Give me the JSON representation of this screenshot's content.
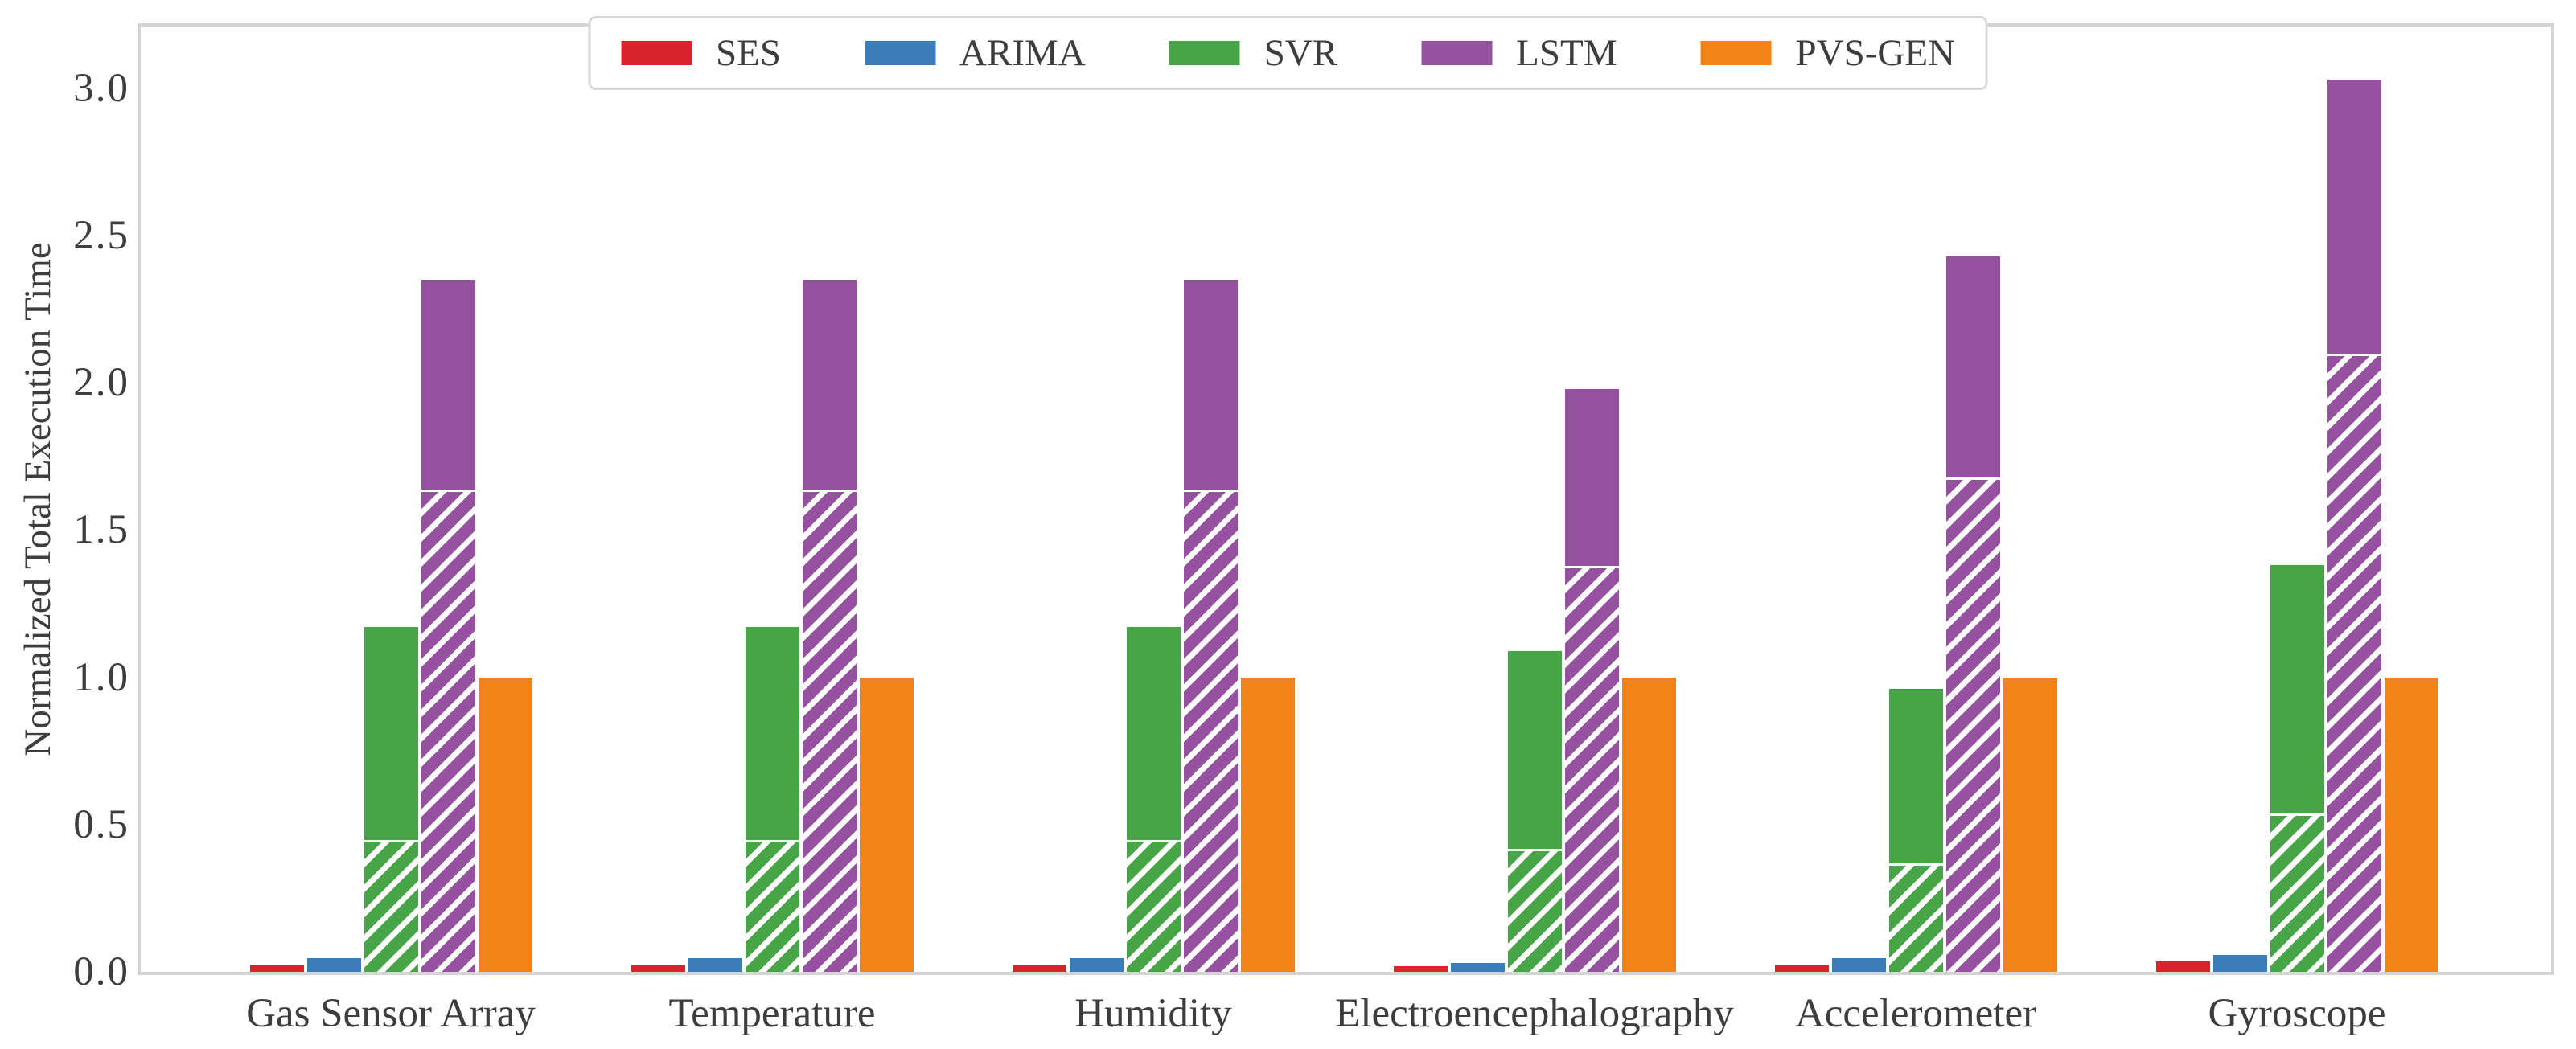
{
  "figure": {
    "background": "#ffffff",
    "spine_color": "#d4d4d4",
    "text_color": "#3d3d3d"
  },
  "chart_data": {
    "type": "bar",
    "title": "",
    "xlabel": "",
    "ylabel": "Normalized Total Execution Time",
    "ylim": [
      0,
      3.21
    ],
    "yticks": [
      0.0,
      0.5,
      1.0,
      1.5,
      2.0,
      2.5,
      3.0
    ],
    "yticklabels": [
      "0.0",
      "0.5",
      "1.0",
      "1.5",
      "2.0",
      "2.5",
      "3.0"
    ],
    "grid": false,
    "legend_position": "top-center",
    "bar_style_note": "SVR and LSTM bars are stacked: lower portion white-diagonal-hatched, upper portion solid",
    "categories": [
      "Gas Sensor Array",
      "Temperature",
      "Humidity",
      "Electroencephalography",
      "Accelerometer",
      "Gyroscope"
    ],
    "series": [
      {
        "name": "SES",
        "color": "#d8232a",
        "hatched": false,
        "values": [
          0.025,
          0.025,
          0.025,
          0.018,
          0.025,
          0.035
        ]
      },
      {
        "name": "ARIMA",
        "color": "#3a7db8",
        "hatched": false,
        "values": [
          0.046,
          0.046,
          0.046,
          0.03,
          0.046,
          0.057
        ]
      },
      {
        "name": "SVR",
        "color": "#47a447",
        "hatched": true,
        "values": [
          1.17,
          1.17,
          1.17,
          1.09,
          0.96,
          1.38
        ],
        "hatched_portion": [
          0.44,
          0.44,
          0.44,
          0.41,
          0.36,
          0.53
        ]
      },
      {
        "name": "LSTM",
        "color": "#95519f",
        "hatched": true,
        "values": [
          2.35,
          2.35,
          2.35,
          1.98,
          2.43,
          3.03
        ],
        "hatched_portion": [
          1.63,
          1.63,
          1.63,
          1.37,
          1.67,
          2.09
        ]
      },
      {
        "name": "PVS-GEN",
        "color": "#f28317",
        "hatched": false,
        "values": [
          1.0,
          1.0,
          1.0,
          1.0,
          1.0,
          1.0
        ]
      }
    ]
  }
}
